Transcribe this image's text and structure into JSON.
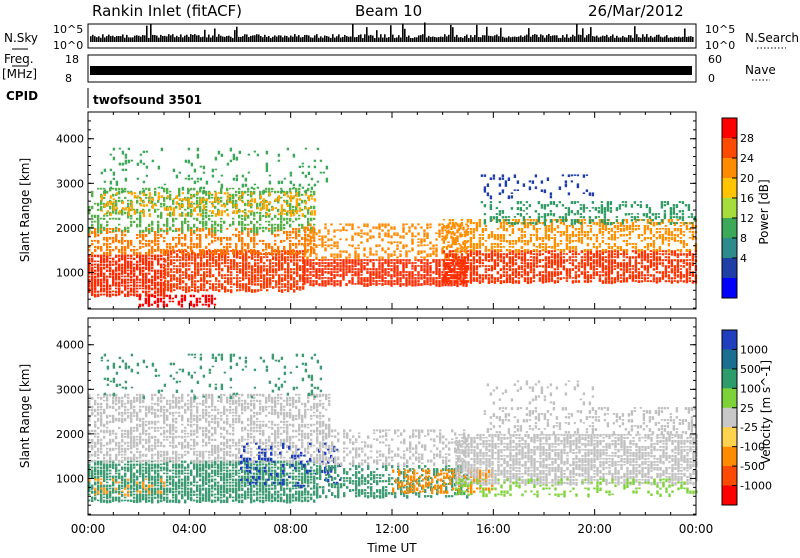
{
  "header": {
    "station": "Rankin Inlet (fitACF)",
    "beam": "Beam 10",
    "date": "26/Mar/2012"
  },
  "status_panels": {
    "nsky_label": "N.Sky",
    "nsky_ticks": [
      "10^5",
      "10^0"
    ],
    "nsearch_label": "N.Search",
    "nsearch_ticks": [
      "10^5",
      "10^0"
    ],
    "freq_label": "Freq.",
    "freq_unit": "[MHz]",
    "freq_ticks": [
      "18",
      "8"
    ],
    "nave_label": "Nave",
    "nave_ticks": [
      "60",
      "0"
    ],
    "cpid_label": "CPID",
    "cpid_value": "twofsound 3501"
  },
  "chart_data": [
    {
      "type": "heatmap",
      "name": "power",
      "ylabel": "Slant Range [km]",
      "yticks": [
        1000,
        2000,
        3000,
        4000
      ],
      "ylim": [
        180,
        4600
      ],
      "xlim": [
        0,
        24
      ],
      "colorbar": {
        "label": "Power [dB]",
        "ticks": [
          "28",
          "24",
          "20",
          "16",
          "12",
          "8",
          "4"
        ],
        "colors": [
          "#ff0000",
          "#ff4b00",
          "#ff8c00",
          "#ffc300",
          "#a6dc3c",
          "#3ca85a",
          "#2e8b8b",
          "#1f3fa6",
          "#0000ff"
        ]
      },
      "regions": [
        {
          "t0": 0.0,
          "t1": 3.0,
          "r0": 500,
          "r1": 1400,
          "color": "#ff2a00",
          "density": 0.9
        },
        {
          "t0": 3.0,
          "t1": 8.5,
          "r0": 600,
          "r1": 1500,
          "color": "#ff3a00",
          "density": 0.85
        },
        {
          "t0": 0.0,
          "t1": 9.0,
          "r0": 1400,
          "r1": 2000,
          "color": "#ff7a00",
          "density": 0.55
        },
        {
          "t0": 0.0,
          "t1": 9.0,
          "r0": 1900,
          "r1": 2900,
          "color": "#56b04a",
          "density": 0.45
        },
        {
          "t0": 0.5,
          "t1": 9.0,
          "r0": 2300,
          "r1": 2800,
          "color": "#ffa600",
          "density": 0.35
        },
        {
          "t0": 0.5,
          "t1": 9.5,
          "r0": 2800,
          "r1": 3800,
          "color": "#3ca85a",
          "density": 0.12
        },
        {
          "t0": 8.5,
          "t1": 15.0,
          "r0": 700,
          "r1": 1300,
          "color": "#ff2a00",
          "density": 0.85
        },
        {
          "t0": 8.5,
          "t1": 15.0,
          "r0": 1300,
          "r1": 2100,
          "color": "#ff8800",
          "density": 0.45
        },
        {
          "t0": 14.0,
          "t1": 24.0,
          "r0": 800,
          "r1": 1500,
          "color": "#ff3300",
          "density": 0.8
        },
        {
          "t0": 14.0,
          "t1": 24.0,
          "r0": 1500,
          "r1": 2200,
          "color": "#ff9000",
          "density": 0.55
        },
        {
          "t0": 15.5,
          "t1": 24.0,
          "r0": 2100,
          "r1": 2600,
          "color": "#2f9a62",
          "density": 0.4
        },
        {
          "t0": 15.5,
          "t1": 20.0,
          "r0": 2700,
          "r1": 3200,
          "color": "#1f3fa6",
          "density": 0.18
        },
        {
          "t0": 2.0,
          "t1": 5.0,
          "r0": 250,
          "r1": 500,
          "color": "#ff0000",
          "density": 0.6
        }
      ]
    },
    {
      "type": "heatmap",
      "name": "velocity",
      "ylabel": "Slant Range [km]",
      "xlabel": "Time UT",
      "yticks": [
        1000,
        2000,
        3000,
        4000
      ],
      "ylim": [
        180,
        4600
      ],
      "xlim": [
        0,
        24
      ],
      "xticks": [
        "00:00",
        "04:00",
        "08:00",
        "12:00",
        "16:00",
        "20:00",
        "00:00"
      ],
      "colorbar": {
        "label": "Velocity [m s^-1]",
        "ticks": [
          "1000",
          "500",
          "100",
          "25",
          "-25",
          "-100",
          "-500",
          "-1000"
        ],
        "colors": [
          "#1f3fbf",
          "#1a6e8f",
          "#2e9b6c",
          "#7dd23a",
          "#c8c8c8",
          "#ffd34d",
          "#ff8c00",
          "#ff4b00",
          "#ff0000"
        ]
      },
      "regions": [
        {
          "t0": 0.0,
          "t1": 9.0,
          "r0": 500,
          "r1": 1400,
          "color": "#3e9a72",
          "density": 0.85
        },
        {
          "t0": 0.0,
          "t1": 3.0,
          "r0": 600,
          "r1": 1000,
          "color": "#ff9a1a",
          "density": 0.25
        },
        {
          "t0": 0.0,
          "t1": 9.5,
          "r0": 1400,
          "r1": 2900,
          "color": "#c0c0c0",
          "density": 0.6
        },
        {
          "t0": 0.5,
          "t1": 9.5,
          "r0": 2800,
          "r1": 3800,
          "color": "#3e9a72",
          "density": 0.12
        },
        {
          "t0": 6.0,
          "t1": 10.0,
          "r0": 800,
          "r1": 1800,
          "color": "#1f3fbf",
          "density": 0.2
        },
        {
          "t0": 9.0,
          "t1": 15.0,
          "r0": 600,
          "r1": 1300,
          "color": "#3e9a72",
          "density": 0.5
        },
        {
          "t0": 12.0,
          "t1": 16.0,
          "r0": 700,
          "r1": 1200,
          "color": "#ff8c00",
          "density": 0.55
        },
        {
          "t0": 9.0,
          "t1": 15.0,
          "r0": 1300,
          "r1": 2100,
          "color": "#c0c0c0",
          "density": 0.4
        },
        {
          "t0": 14.5,
          "t1": 24.0,
          "r0": 900,
          "r1": 2000,
          "color": "#c0c0c0",
          "density": 0.8
        },
        {
          "t0": 14.5,
          "t1": 24.0,
          "r0": 600,
          "r1": 1000,
          "color": "#7dd23a",
          "density": 0.3
        },
        {
          "t0": 15.5,
          "t1": 24.0,
          "r0": 2000,
          "r1": 2600,
          "color": "#c0c0c0",
          "density": 0.35
        },
        {
          "t0": 15.5,
          "t1": 20.0,
          "r0": 2700,
          "r1": 3200,
          "color": "#c0c0c0",
          "density": 0.12
        }
      ]
    }
  ]
}
